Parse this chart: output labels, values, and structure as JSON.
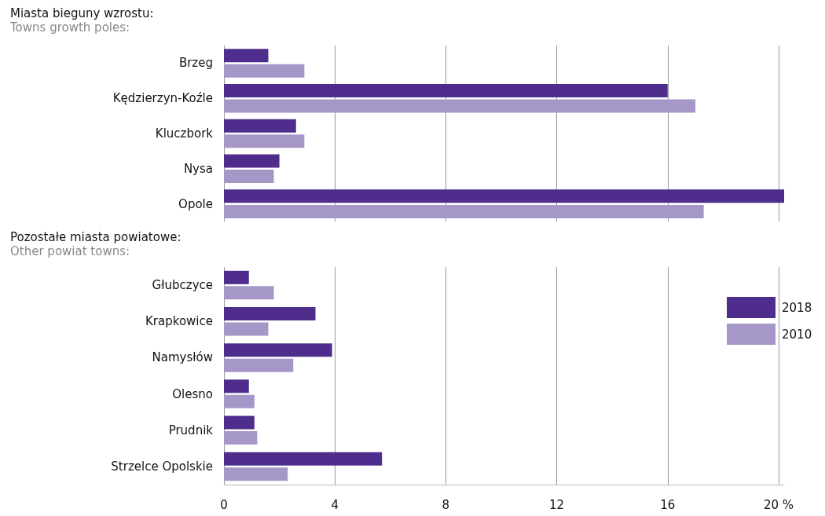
{
  "chart_data": [
    {
      "type": "bar",
      "orientation": "horizontal",
      "title": "Miasta bieguny wzrostu:",
      "subtitle": "Towns growth poles:",
      "categories": [
        "Brzeg",
        "Kędzierzyn-Koźle",
        "Kluczbork",
        "Nysa",
        "Opole"
      ],
      "series": [
        {
          "color": "#4e2d8c",
          "values": [
            1.6,
            16.0,
            2.6,
            2.0,
            20.2
          ]
        },
        {
          "color": "#a597c8",
          "values": [
            2.9,
            17.0,
            2.9,
            1.8,
            17.3
          ]
        }
      ],
      "xlim": [
        0,
        20.2
      ],
      "xticks": [
        0,
        4,
        8,
        12,
        16,
        20
      ],
      "grid": "x",
      "legend": false,
      "tick_labels": "y"
    },
    {
      "type": "bar",
      "orientation": "horizontal",
      "title": "Pozostałe miasta powiatowe:",
      "subtitle": "Other powiat towns:",
      "categories": [
        "Głubczyce",
        "Krapkowice",
        "Namysłów",
        "Olesno",
        "Prudnik",
        "Strzelce Opolskie"
      ],
      "series": [
        {
          "name": "2018",
          "color": "#4e2d8c",
          "values": [
            0.9,
            3.3,
            3.9,
            0.9,
            1.1,
            5.7
          ]
        },
        {
          "name": "2010",
          "color": "#a597c8",
          "values": [
            1.8,
            1.6,
            2.5,
            1.1,
            1.2,
            2.3
          ]
        }
      ],
      "xlim": [
        0,
        20.2
      ],
      "xticks": [
        0,
        4,
        8,
        12,
        16,
        {
          "value": 20,
          "label": "20 %"
        }
      ],
      "grid": "x",
      "legend": "right"
    }
  ]
}
